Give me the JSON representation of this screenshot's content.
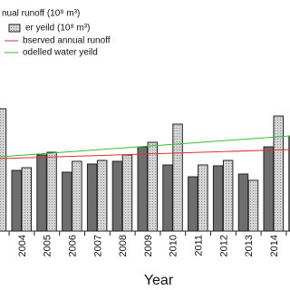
{
  "chart_data": {
    "type": "bar",
    "xlabel": "Year",
    "categories": [
      null,
      "2004",
      "2005",
      "2006",
      "2007",
      "2008",
      "2009",
      "2010",
      "2011",
      "2012",
      "2013",
      "2014",
      null
    ],
    "series": [
      {
        "name": "nual runoff (10⁸ m³)",
        "color": "#6e6e6e",
        "values": [
          null,
          67,
          84,
          65,
          74,
          77,
          93,
          73,
          60,
          72,
          63,
          93,
          105
        ]
      },
      {
        "name": "er yeild (10⁸ m³)",
        "color": "#cfcfcf",
        "values": [
          135,
          70,
          87,
          77,
          78,
          84,
          98,
          118,
          73,
          78,
          56,
          127,
          null
        ]
      }
    ],
    "trends": [
      {
        "name": "bserved annual runoff",
        "color": "#e03030",
        "values": [
          80,
          90
        ]
      },
      {
        "name": "odelled water yeild",
        "color": "#30c030",
        "values": [
          82,
          105
        ]
      }
    ],
    "ylim": [
      0,
      255
    ]
  }
}
